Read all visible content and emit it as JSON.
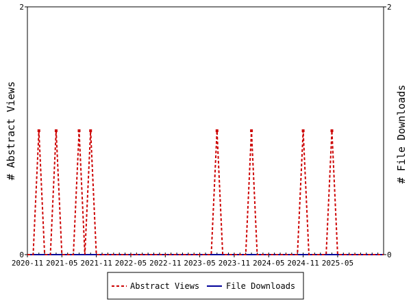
{
  "chart_data": {
    "type": "line",
    "title": "",
    "ylabel": "# Abstract Views",
    "y2label": "# File Downloads",
    "ylim": [
      0,
      2
    ],
    "y2lim": [
      0,
      2
    ],
    "y_ticks": [
      "0",
      "2"
    ],
    "y2_ticks": [
      "0",
      "2"
    ],
    "xlim": [
      "2020-11",
      "2026-01"
    ],
    "x_tick_labels": [
      "2020-11",
      "2021-05",
      "2021-11",
      "2022-05",
      "2022-11",
      "2023-05",
      "2023-11",
      "2024-05",
      "2024-11",
      "2025-05"
    ],
    "x": [
      "2020-11",
      "2020-12",
      "2021-01",
      "2021-02",
      "2021-03",
      "2021-04",
      "2021-05",
      "2021-06",
      "2021-07",
      "2021-08",
      "2021-09",
      "2021-10",
      "2021-11",
      "2021-12",
      "2022-01",
      "2022-02",
      "2022-03",
      "2022-04",
      "2022-05",
      "2022-06",
      "2022-07",
      "2022-08",
      "2022-09",
      "2022-10",
      "2022-11",
      "2022-12",
      "2023-01",
      "2023-02",
      "2023-03",
      "2023-04",
      "2023-05",
      "2023-06",
      "2023-07",
      "2023-08",
      "2023-09",
      "2023-10",
      "2023-11",
      "2023-12",
      "2024-01",
      "2024-02",
      "2024-03",
      "2024-04",
      "2024-05",
      "2024-06",
      "2024-07",
      "2024-08",
      "2024-09",
      "2024-10",
      "2024-11",
      "2024-12",
      "2025-01",
      "2025-02",
      "2025-03",
      "2025-04",
      "2025-05",
      "2025-06",
      "2025-07",
      "2025-08",
      "2025-09",
      "2025-10",
      "2025-11",
      "2025-12",
      "2026-01"
    ],
    "series": [
      {
        "name": "Abstract Views",
        "color": "#cc0000",
        "style": "dashed",
        "axis": "left",
        "values": [
          0,
          0,
          1,
          0,
          0,
          1,
          0,
          0,
          0,
          1,
          0,
          1,
          0,
          0,
          0,
          0,
          0,
          0,
          0,
          0,
          0,
          0,
          0,
          0,
          0,
          0,
          0,
          0,
          0,
          0,
          0,
          0,
          0,
          1,
          0,
          0,
          0,
          0,
          0,
          1,
          0,
          0,
          0,
          0,
          0,
          0,
          0,
          0,
          1,
          0,
          0,
          0,
          0,
          1,
          0,
          0,
          0,
          0,
          0,
          0,
          0,
          0,
          0
        ]
      },
      {
        "name": "File Downloads",
        "color": "#000099",
        "style": "solid",
        "axis": "right",
        "values": [
          0,
          0,
          0,
          0,
          0,
          0,
          0,
          0,
          0,
          0,
          0,
          0,
          0,
          0,
          0,
          0,
          0,
          0,
          0,
          0,
          0,
          0,
          0,
          0,
          0,
          0,
          0,
          0,
          0,
          0,
          0,
          0,
          0,
          0,
          0,
          0,
          0,
          0,
          0,
          0,
          0,
          0,
          0,
          0,
          0,
          0,
          0,
          0,
          0,
          0,
          0,
          0,
          0,
          0,
          0,
          0,
          0,
          0,
          0,
          0,
          0,
          0,
          0
        ]
      }
    ],
    "legend_position": "bottom-center",
    "grid": false
  }
}
